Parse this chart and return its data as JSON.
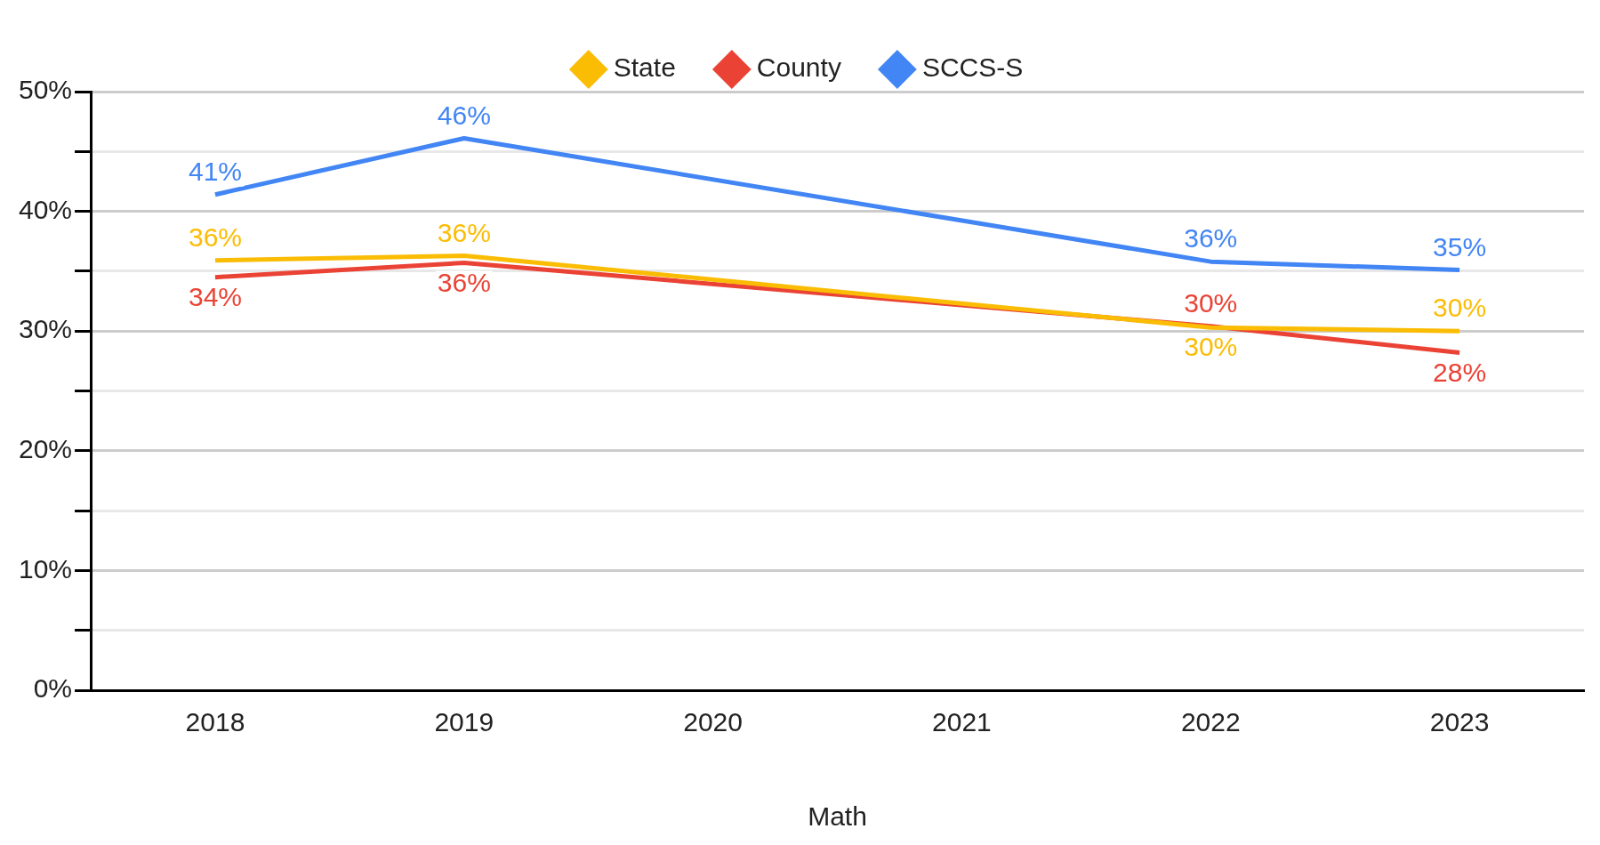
{
  "chart_data": {
    "type": "line",
    "xlabel": "Math",
    "categories": [
      "2018",
      "2019",
      "2020",
      "2021",
      "2022",
      "2023"
    ],
    "series": [
      {
        "name": "State",
        "color": "#fbbc04",
        "values": [
          35.9,
          36.3,
          null,
          null,
          30.3,
          30.0
        ],
        "value_labels": [
          "36%",
          "36%",
          null,
          null,
          "30%",
          "30%"
        ]
      },
      {
        "name": "County",
        "color": "#ea4335",
        "values": [
          34.5,
          35.7,
          null,
          null,
          30.4,
          28.2
        ],
        "value_labels": [
          "34%",
          "36%",
          null,
          null,
          "30%",
          "28%"
        ]
      },
      {
        "name": "SCCS-S",
        "color": "#4285f4",
        "values": [
          41.4,
          46.1,
          null,
          null,
          35.8,
          35.1
        ],
        "value_labels": [
          "41%",
          "46%",
          null,
          null,
          "36%",
          "35%"
        ]
      }
    ],
    "ylim": [
      0,
      50
    ],
    "yticks": [
      {
        "value": 0,
        "label": "0%"
      },
      {
        "value": 5,
        "label": null
      },
      {
        "value": 10,
        "label": "10%"
      },
      {
        "value": 15,
        "label": null
      },
      {
        "value": 20,
        "label": "20%"
      },
      {
        "value": 25,
        "label": null
      },
      {
        "value": 30,
        "label": "30%"
      },
      {
        "value": 35,
        "label": null
      },
      {
        "value": 40,
        "label": "40%"
      },
      {
        "value": 45,
        "label": null
      },
      {
        "value": 50,
        "label": "50%"
      }
    ],
    "grid": "y",
    "legend": "top"
  }
}
